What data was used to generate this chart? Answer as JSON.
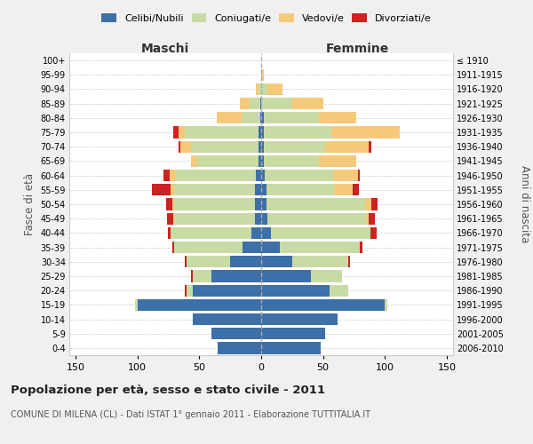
{
  "age_groups": [
    "0-4",
    "5-9",
    "10-14",
    "15-19",
    "20-24",
    "25-29",
    "30-34",
    "35-39",
    "40-44",
    "45-49",
    "50-54",
    "55-59",
    "60-64",
    "65-69",
    "70-74",
    "75-79",
    "80-84",
    "85-89",
    "90-94",
    "95-99",
    "100+"
  ],
  "birth_years": [
    "2006-2010",
    "2001-2005",
    "1996-2000",
    "1991-1995",
    "1986-1990",
    "1981-1985",
    "1976-1980",
    "1971-1975",
    "1966-1970",
    "1961-1965",
    "1956-1960",
    "1951-1955",
    "1946-1950",
    "1941-1945",
    "1936-1940",
    "1931-1935",
    "1926-1930",
    "1921-1925",
    "1916-1920",
    "1911-1915",
    "≤ 1910"
  ],
  "male": {
    "celibi": [
      35,
      40,
      55,
      100,
      55,
      40,
      25,
      15,
      8,
      5,
      5,
      5,
      4,
      2,
      2,
      2,
      1,
      1,
      0,
      0,
      0
    ],
    "coniugati": [
      0,
      0,
      0,
      2,
      5,
      15,
      35,
      55,
      65,
      65,
      65,
      65,
      65,
      50,
      55,
      60,
      15,
      8,
      2,
      0,
      0
    ],
    "vedovi": [
      0,
      0,
      0,
      0,
      0,
      0,
      0,
      0,
      0,
      1,
      2,
      3,
      5,
      5,
      8,
      5,
      20,
      8,
      2,
      0,
      0
    ],
    "divorziati": [
      0,
      0,
      0,
      0,
      2,
      2,
      2,
      2,
      2,
      5,
      5,
      15,
      5,
      0,
      2,
      4,
      0,
      0,
      0,
      0,
      0
    ]
  },
  "female": {
    "nubili": [
      48,
      52,
      62,
      100,
      55,
      40,
      25,
      15,
      8,
      5,
      4,
      4,
      3,
      2,
      2,
      2,
      2,
      0,
      0,
      0,
      0
    ],
    "coniugate": [
      0,
      0,
      0,
      2,
      15,
      25,
      45,
      65,
      80,
      80,
      80,
      55,
      55,
      45,
      50,
      55,
      45,
      25,
      5,
      0,
      0
    ],
    "vedove": [
      0,
      0,
      0,
      0,
      0,
      0,
      0,
      0,
      0,
      2,
      5,
      15,
      20,
      30,
      35,
      55,
      30,
      25,
      12,
      2,
      0
    ],
    "divorziate": [
      0,
      0,
      0,
      0,
      0,
      0,
      2,
      2,
      5,
      5,
      5,
      5,
      2,
      0,
      2,
      0,
      0,
      0,
      0,
      0,
      0
    ]
  },
  "colors": {
    "celibi": "#3d6fa8",
    "coniugati": "#c8dba4",
    "vedovi": "#f5c97a",
    "divorziati": "#cc2222"
  },
  "title": "Popolazione per età, sesso e stato civile - 2011",
  "subtitle": "COMUNE DI MILENA (CL) - Dati ISTAT 1° gennaio 2011 - Elaborazione TUTTITALIA.IT",
  "xlabel_left": "Maschi",
  "xlabel_right": "Femmine",
  "ylabel_left": "Fasce di età",
  "ylabel_right": "Anni di nascita",
  "xlim": 155,
  "bg_color": "#f0f0f0",
  "plot_bg": "#ffffff",
  "legend_labels": [
    "Celibi/Nubili",
    "Coniugati/e",
    "Vedovi/e",
    "Divorziati/e"
  ]
}
